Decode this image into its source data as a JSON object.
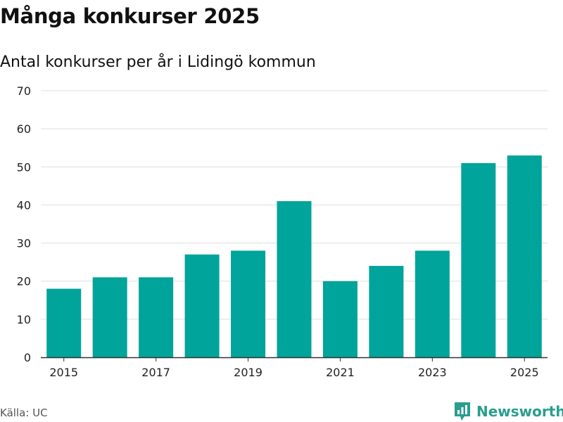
{
  "header": {
    "title": "Många konkurser 2025",
    "subtitle": "Antal konkurser per år i Lidingö kommun"
  },
  "footer": {
    "source": "Källa: UC",
    "brand_name": "Newsworthy",
    "brand_icon": "newsworthy-logo-icon"
  },
  "colors": {
    "bar": "#00a49a",
    "grid": "#dddddd",
    "axis": "#333333",
    "brand": "#2a9d8f"
  },
  "chart_data": {
    "type": "bar",
    "title": "Många konkurser 2025",
    "subtitle": "Antal konkurser per år i Lidingö kommun",
    "xlabel": "",
    "ylabel": "",
    "categories": [
      "2015",
      "2016",
      "2017",
      "2018",
      "2019",
      "2020",
      "2021",
      "2022",
      "2023",
      "2024",
      "2025"
    ],
    "values": [
      18,
      21,
      21,
      27,
      28,
      41,
      20,
      24,
      28,
      51,
      53
    ],
    "x_tick_labels": [
      "2015",
      "2017",
      "2019",
      "2021",
      "2023",
      "2025"
    ],
    "yticks": [
      0,
      10,
      20,
      30,
      40,
      50,
      60,
      70
    ],
    "ylim": [
      0,
      70
    ],
    "grid": true,
    "legend": "none"
  }
}
